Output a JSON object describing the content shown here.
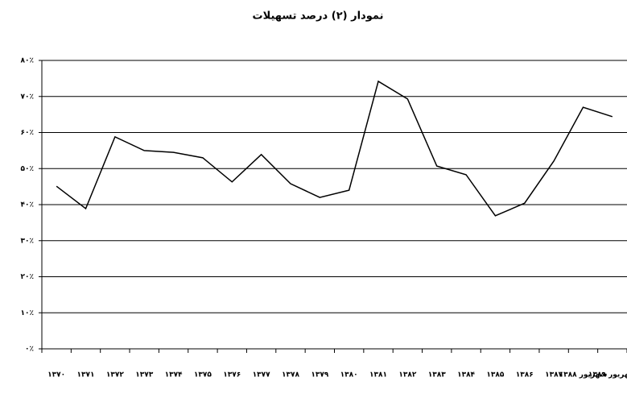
{
  "chart_data": {
    "type": "line",
    "title": "نمودار (۲) درصد تسهیلات",
    "categories": [
      "۱۳۷۰",
      "۱۳۷۱",
      "۱۳۷۲",
      "۱۳۷۳",
      "۱۳۷۴",
      "۱۳۷۵",
      "۱۳۷۶",
      "۱۳۷۷",
      "۱۳۷۸",
      "۱۳۷۹",
      "۱۳۸۰",
      "۱۳۸۱",
      "۱۳۸۲",
      "۱۳۸۳",
      "۱۳۸۴",
      "۱۳۸۵",
      "۱۳۸۶",
      "۱۳۸۷",
      "شهریور ۱۳۸۸",
      "شهریور ۱۳۸۹"
    ],
    "series": [
      {
        "name": "درصد تسهیلات",
        "color": "#000000",
        "values": [
          45.1,
          38.9,
          58.8,
          55.0,
          54.5,
          53.0,
          46.3,
          53.9,
          45.8,
          42.0,
          44.0,
          74.2,
          69.3,
          50.7,
          48.3,
          36.9,
          40.4,
          52.1,
          67.0,
          64.4
        ]
      }
    ],
    "ylim": [
      0,
      80
    ],
    "yticks": [
      {
        "value": 0,
        "label": "۰٪"
      },
      {
        "value": 10,
        "label": "۱۰٪"
      },
      {
        "value": 20,
        "label": "۲۰٪"
      },
      {
        "value": 30,
        "label": "۳۰٪"
      },
      {
        "value": 40,
        "label": "۴۰٪"
      },
      {
        "value": 50,
        "label": "۵۰٪"
      },
      {
        "value": 60,
        "label": "۶۰٪"
      },
      {
        "value": 70,
        "label": "۷۰٪"
      },
      {
        "value": 80,
        "label": "۸۰٪"
      }
    ],
    "grid": true
  }
}
